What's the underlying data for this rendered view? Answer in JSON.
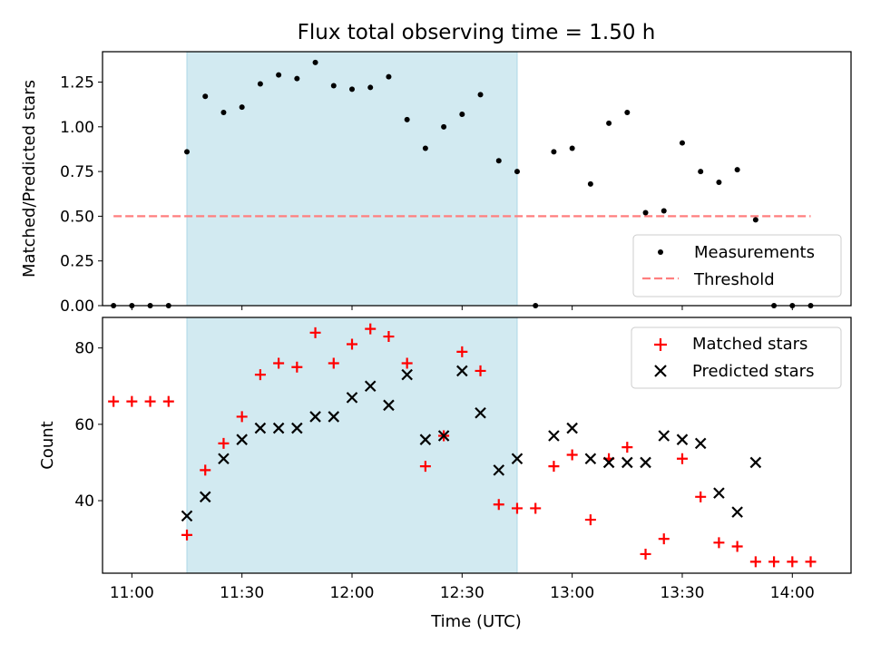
{
  "figure": {
    "title": "Flux total observing time = 1.50 h"
  },
  "chart_data": [
    {
      "type": "scatter",
      "title": "Flux total observing time = 1.50 h",
      "xlabel": "",
      "ylabel": "Matched/Predicted stars",
      "xlim": [
        "10:52",
        "14:16"
      ],
      "ylim": [
        0,
        1.42
      ],
      "yticks": [
        "0.00",
        "0.25",
        "0.50",
        "0.75",
        "1.00",
        "1.25"
      ],
      "highlight_span": {
        "start": "11:15",
        "end": "12:45",
        "color": "#add8e6"
      },
      "legend": {
        "position": "lower-right"
      },
      "series": [
        {
          "name": "Measurements",
          "kind": "scatter",
          "marker": "dot",
          "color": "#000000",
          "x": [
            "10:55",
            "11:00",
            "11:05",
            "11:10",
            "11:15",
            "11:20",
            "11:25",
            "11:30",
            "11:35",
            "11:40",
            "11:45",
            "11:50",
            "11:55",
            "12:00",
            "12:05",
            "12:10",
            "12:15",
            "12:20",
            "12:25",
            "12:30",
            "12:35",
            "12:40",
            "12:45",
            "12:50",
            "12:55",
            "13:00",
            "13:05",
            "13:10",
            "13:15",
            "13:20",
            "13:25",
            "13:30",
            "13:35",
            "13:40",
            "13:45",
            "13:50",
            "13:55",
            "14:00",
            "14:05"
          ],
          "y": [
            0,
            0,
            0,
            0,
            0.86,
            1.17,
            1.08,
            1.11,
            1.24,
            1.29,
            1.27,
            1.36,
            1.23,
            1.21,
            1.22,
            1.28,
            1.04,
            0.88,
            1.0,
            1.07,
            1.18,
            0.81,
            0.75,
            0,
            0.86,
            0.88,
            0.68,
            1.02,
            1.08,
            0.52,
            0.53,
            0.91,
            0.75,
            0.69,
            0.76,
            0.48,
            0,
            0,
            0
          ]
        },
        {
          "name": "Threshold",
          "kind": "line",
          "style": "dashed",
          "color": "#ff7f7f",
          "x": [
            "10:55",
            "14:05"
          ],
          "y": [
            0.5,
            0.5
          ]
        }
      ]
    },
    {
      "type": "scatter",
      "xlabel": "Time (UTC)",
      "ylabel": "Count",
      "xlim": [
        "10:52",
        "14:16"
      ],
      "ylim": [
        21,
        88
      ],
      "xticks": [
        "11:00",
        "11:30",
        "12:00",
        "12:30",
        "13:00",
        "13:30",
        "14:00"
      ],
      "yticks": [
        "40",
        "60",
        "80"
      ],
      "highlight_span": {
        "start": "11:15",
        "end": "12:45",
        "color": "#add8e6"
      },
      "legend": {
        "position": "top-right"
      },
      "series": [
        {
          "name": "Matched stars",
          "marker": "plus",
          "color": "#ff0000",
          "x": [
            "10:55",
            "11:00",
            "11:05",
            "11:10",
            "11:15",
            "11:20",
            "11:25",
            "11:30",
            "11:35",
            "11:40",
            "11:45",
            "11:50",
            "11:55",
            "12:00",
            "12:05",
            "12:10",
            "12:15",
            "12:20",
            "12:25",
            "12:30",
            "12:35",
            "12:40",
            "12:45",
            "12:50",
            "12:55",
            "13:00",
            "13:05",
            "13:10",
            "13:15",
            "13:20",
            "13:25",
            "13:30",
            "13:35",
            "13:40",
            "13:45",
            "13:50",
            "13:55",
            "14:00",
            "14:05"
          ],
          "y": [
            66,
            66,
            66,
            66,
            31,
            48,
            55,
            62,
            73,
            76,
            75,
            84,
            76,
            81,
            85,
            83,
            76,
            49,
            57,
            79,
            74,
            39,
            38,
            38,
            49,
            52,
            35,
            51,
            54,
            26,
            30,
            51,
            41,
            29,
            28,
            24,
            24,
            24,
            24
          ]
        },
        {
          "name": "Predicted stars",
          "marker": "x",
          "color": "#000000",
          "x": [
            "11:15",
            "11:20",
            "11:25",
            "11:30",
            "11:35",
            "11:40",
            "11:45",
            "11:50",
            "11:55",
            "12:00",
            "12:05",
            "12:10",
            "12:15",
            "12:20",
            "12:25",
            "12:30",
            "12:35",
            "12:40",
            "12:45",
            "12:55",
            "13:00",
            "13:05",
            "13:10",
            "13:15",
            "13:20",
            "13:25",
            "13:30",
            "13:35",
            "13:40",
            "13:45",
            "13:50"
          ],
          "y": [
            36,
            41,
            51,
            56,
            59,
            59,
            59,
            62,
            62,
            67,
            70,
            65,
            73,
            56,
            57,
            74,
            63,
            48,
            51,
            57,
            59,
            51,
            50,
            50,
            50,
            57,
            56,
            55,
            42,
            37,
            50
          ]
        }
      ]
    }
  ]
}
